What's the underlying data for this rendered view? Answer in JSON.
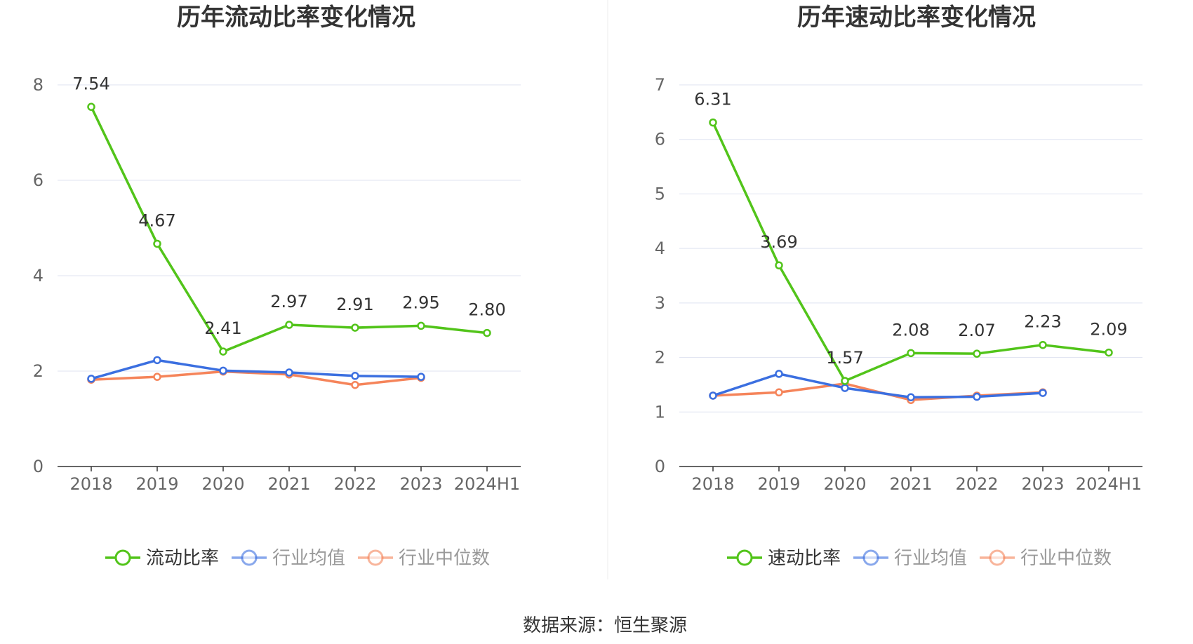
{
  "source": "数据来源：恒生聚源",
  "chart_data": [
    {
      "type": "line",
      "title": "历年流动比率变化情况",
      "categories": [
        "2018",
        "2019",
        "2020",
        "2021",
        "2022",
        "2023",
        "2024H1"
      ],
      "ylim": [
        0,
        8
      ],
      "yticks": [
        0,
        2,
        4,
        6,
        8
      ],
      "grid": true,
      "legend_position": "bottom",
      "series": [
        {
          "name": "流动比率",
          "color": "#52c41a",
          "values": [
            7.54,
            4.67,
            2.41,
            2.97,
            2.91,
            2.95,
            2.8
          ],
          "labels": [
            "7.54",
            "4.67",
            "2.41",
            "2.97",
            "2.91",
            "2.95",
            "2.80"
          ]
        },
        {
          "name": "行业均值",
          "color": "#3b6fe0",
          "values": [
            1.84,
            2.23,
            2.01,
            1.97,
            1.9,
            1.88,
            null
          ]
        },
        {
          "name": "行业中位数",
          "color": "#f5845a",
          "values": [
            1.82,
            1.88,
            1.99,
            1.93,
            1.71,
            1.86,
            null
          ]
        }
      ]
    },
    {
      "type": "line",
      "title": "历年速动比率变化情况",
      "categories": [
        "2018",
        "2019",
        "2020",
        "2021",
        "2022",
        "2023",
        "2024H1"
      ],
      "ylim": [
        0,
        7
      ],
      "yticks": [
        0,
        1,
        2,
        3,
        4,
        5,
        6,
        7
      ],
      "grid": true,
      "legend_position": "bottom",
      "series": [
        {
          "name": "速动比率",
          "color": "#52c41a",
          "values": [
            6.31,
            3.69,
            1.57,
            2.08,
            2.07,
            2.23,
            2.09
          ],
          "labels": [
            "6.31",
            "3.69",
            "1.57",
            "2.08",
            "2.07",
            "2.23",
            "2.09"
          ]
        },
        {
          "name": "行业均值",
          "color": "#3b6fe0",
          "values": [
            1.3,
            1.7,
            1.44,
            1.27,
            1.28,
            1.35,
            null
          ]
        },
        {
          "name": "行业中位数",
          "color": "#f5845a",
          "values": [
            1.3,
            1.36,
            1.52,
            1.22,
            1.3,
            1.36,
            null
          ]
        }
      ]
    }
  ]
}
